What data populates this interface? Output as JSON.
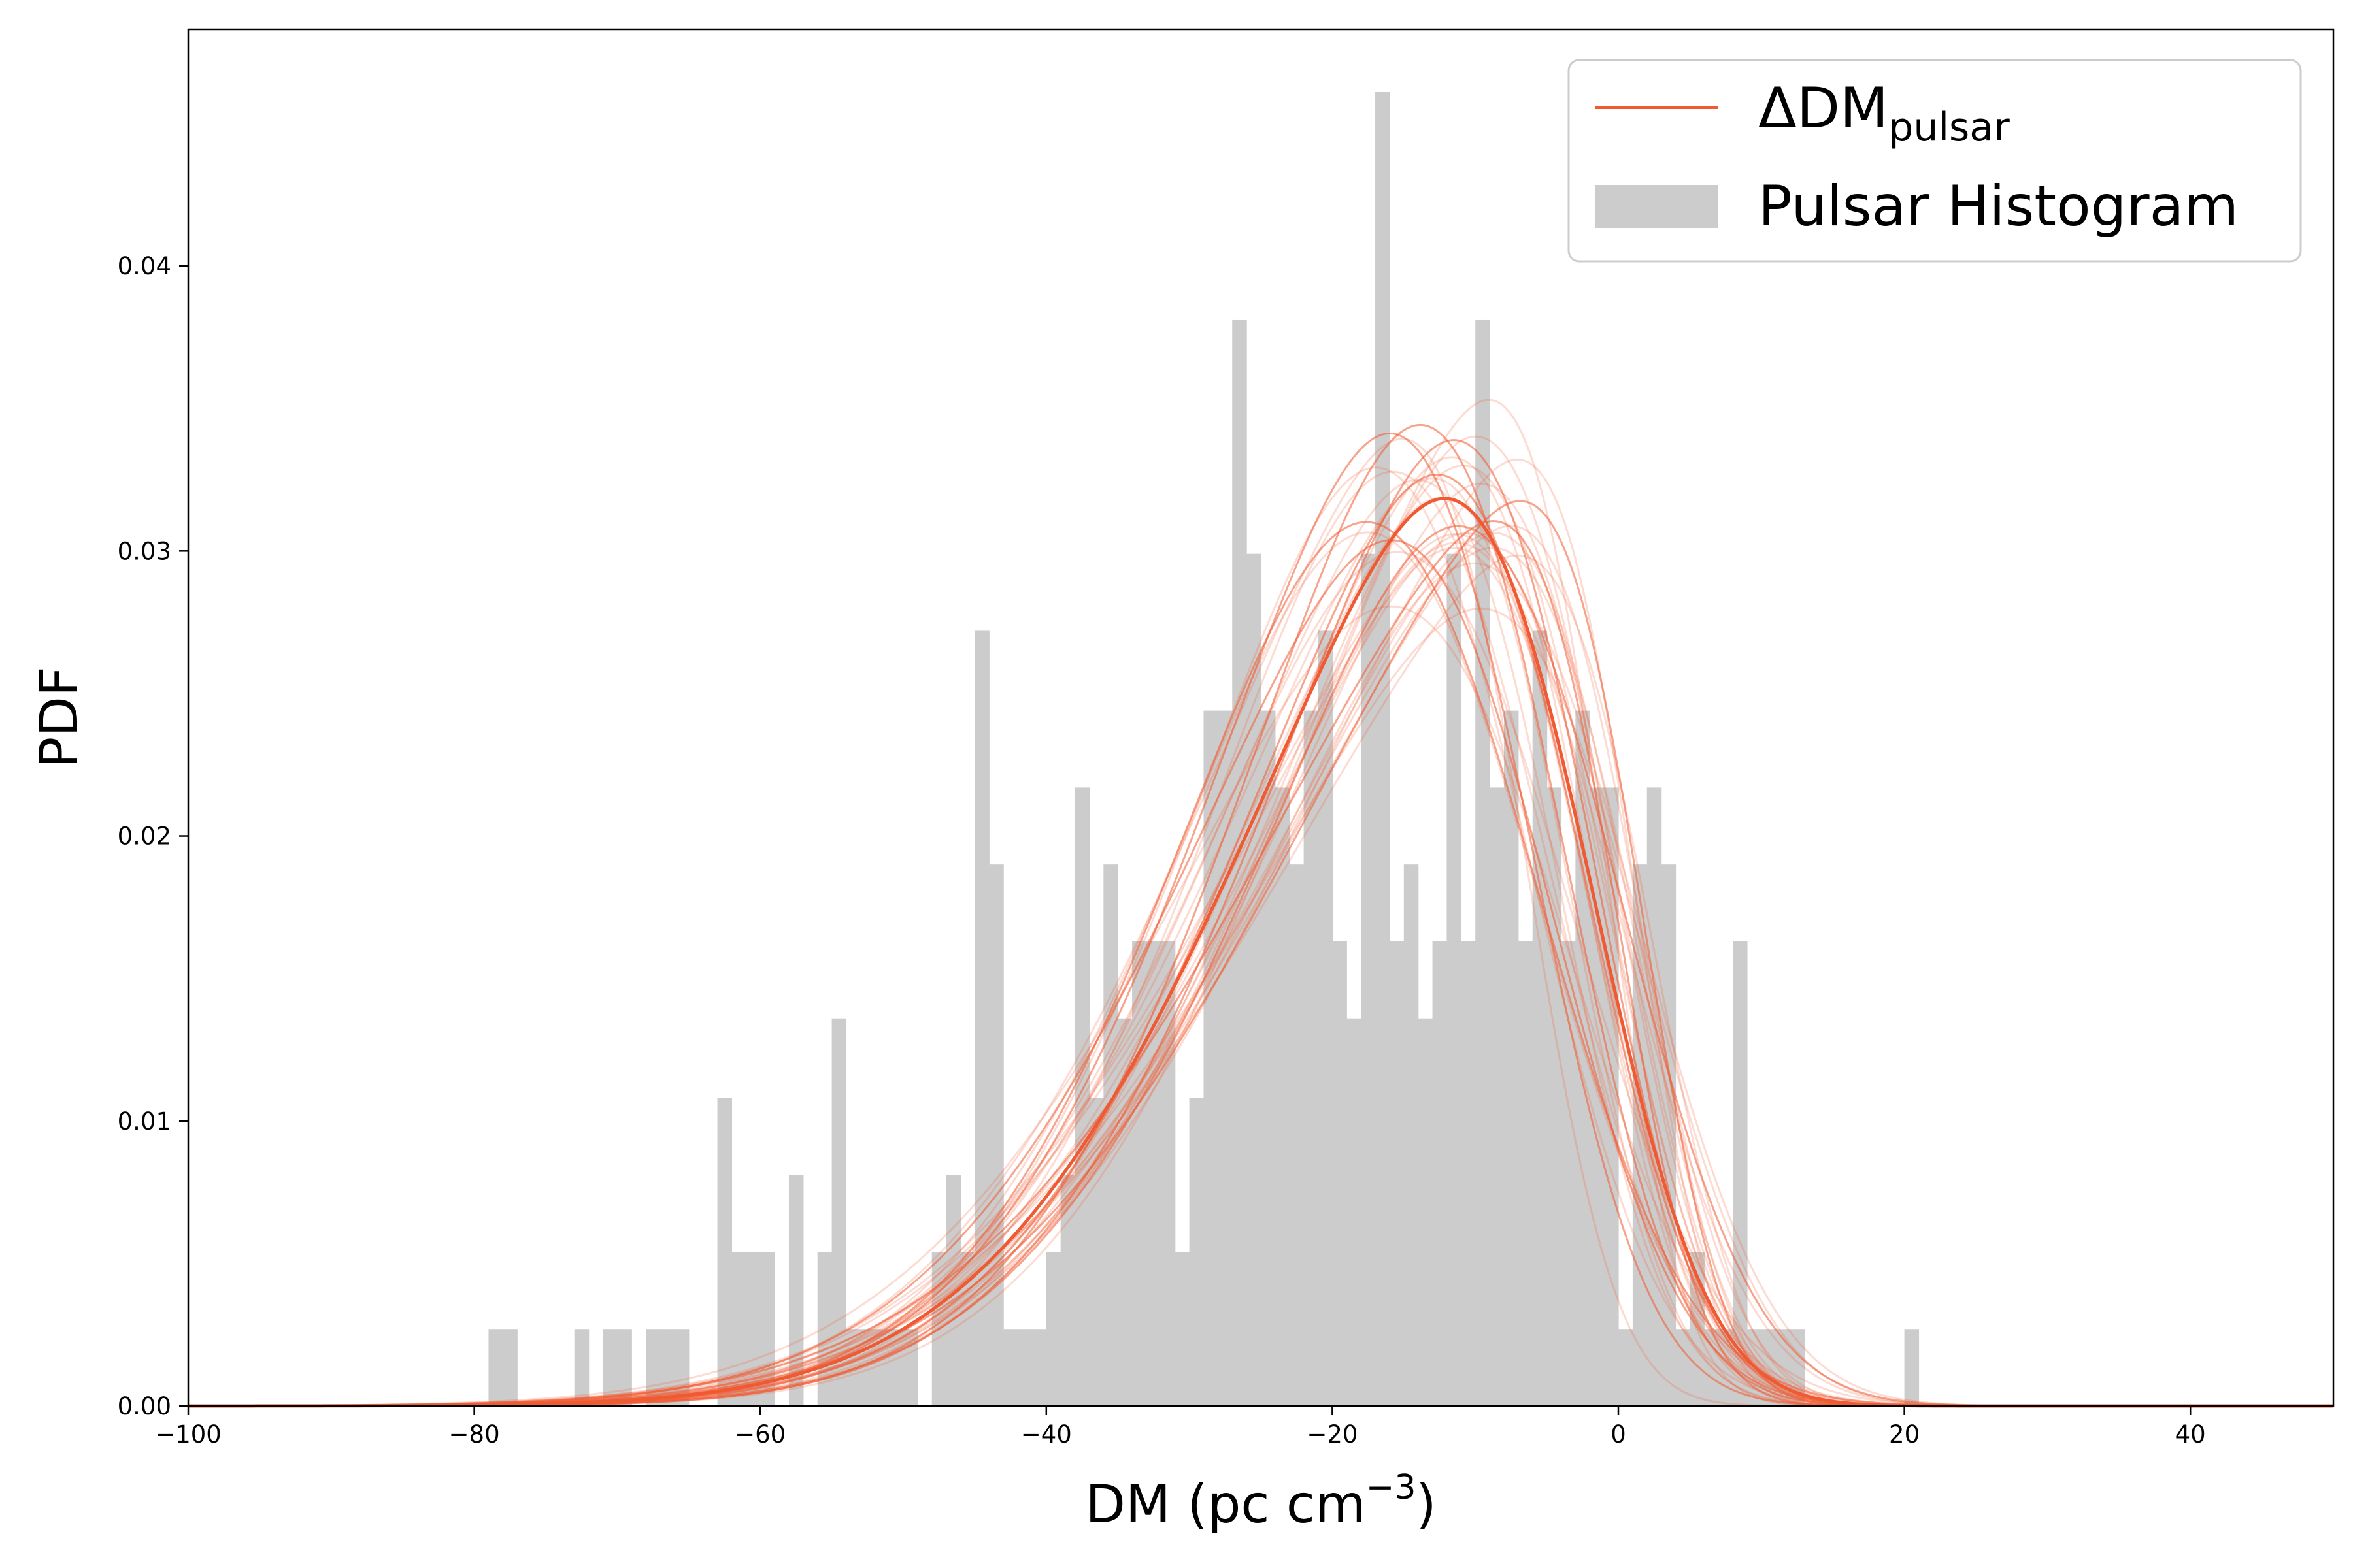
{
  "chart_data": {
    "type": "histogram-with-density-curves",
    "xlabel": "DM (pc cm",
    "xlabel_sup": "−3",
    "xlabel_close": ")",
    "ylabel": "PDF",
    "xlim": [
      -100,
      50
    ],
    "ylim": [
      0,
      0.0483
    ],
    "x_ticks": [
      -100,
      -80,
      -60,
      -40,
      -20,
      0,
      20,
      40
    ],
    "x_tick_labels": [
      "−100",
      "−80",
      "−60",
      "−40",
      "−20",
      "0",
      "20",
      "40"
    ],
    "y_ticks": [
      0,
      0.01,
      0.02,
      0.03,
      0.04
    ],
    "y_tick_labels": [
      "0.00",
      "0.01",
      "0.02",
      "0.03",
      "0.04"
    ],
    "legend": {
      "position": "upper-right",
      "curve_label": "ΔDM",
      "curve_label_sub": "pulsar",
      "histogram_label": "Pulsar Histogram"
    },
    "colors": {
      "curve": "#f05a32",
      "histogram": "#cccccc"
    },
    "histogram": {
      "bin_width": 1,
      "bin_start": -79,
      "bin_end": 21,
      "values": [
        0.0027,
        0.0027,
        0,
        0,
        0,
        0,
        0.0027,
        0,
        0.0027,
        0.0027,
        0,
        0.0027,
        0.0027,
        0.0027,
        0,
        0,
        0.0108,
        0.0054,
        0.0054,
        0.0054,
        0,
        0.0081,
        0,
        0.0054,
        0.0136,
        0.0027,
        0.0027,
        0.0027,
        0.0027,
        0.0027,
        0,
        0.0054,
        0.0081,
        0.0054,
        0.0272,
        0.019,
        0.0027,
        0.0027,
        0.0027,
        0.0054,
        0.0081,
        0.0217,
        0.0108,
        0.019,
        0.0136,
        0.0163,
        0.0163,
        0.0163,
        0.0054,
        0.0108,
        0.0244,
        0.0244,
        0.0381,
        0.0299,
        0.0244,
        0.0217,
        0.019,
        0.0244,
        0.0272,
        0.0163,
        0.0136,
        0.0299,
        0.0461,
        0.0163,
        0.019,
        0.0136,
        0.0163,
        0.0299,
        0.0163,
        0.0381,
        0.0217,
        0.0244,
        0.0163,
        0.0272,
        0.0217,
        0.0163,
        0.0244,
        0.0217,
        0.0217,
        0.0027,
        0.019,
        0.0217,
        0.019,
        0.0027,
        0.0054,
        0.0027,
        0.0027,
        0.0163,
        0.0027,
        0.0027,
        0.0027,
        0.0027,
        0,
        0,
        0,
        0,
        0,
        0,
        0,
        0.0027
      ]
    },
    "curves": {
      "description_free": true,
      "mean_curve": {
        "mu": -18,
        "sigma": 13.5,
        "skew": -3.0
      },
      "variant_count": 34,
      "mu_range": [
        -22.5,
        -15.5
      ],
      "sigma_range": [
        12.0,
        15.5
      ],
      "skew_range": [
        -5.0,
        -1.5
      ]
    }
  }
}
